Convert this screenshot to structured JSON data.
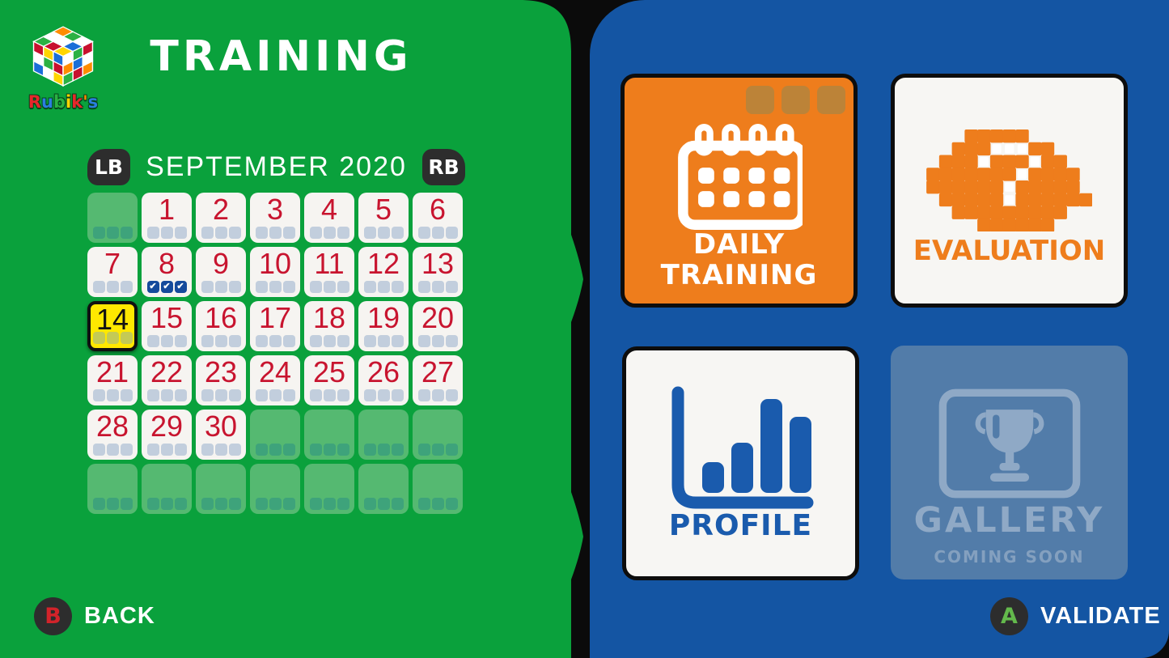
{
  "brand": {
    "name": "Rubik's"
  },
  "screen": {
    "title": "TRAINING"
  },
  "calendar": {
    "month_label": "SEPTEMBER 2020",
    "prev_bumper": "LB",
    "next_bumper": "RB",
    "day_count": 30,
    "leading_empty_cells": 1,
    "trailing_empty_cells": 11,
    "selected_day": 14,
    "completed_day": 8,
    "completed_checks": 3,
    "slots_per_day": 3,
    "check_glyph": "✔"
  },
  "tiles": {
    "daily_training": {
      "label_line1": "DAILY",
      "label_line2": "TRAINING",
      "icon": "calendar-icon",
      "selected": true,
      "slot_count": 3
    },
    "evaluation": {
      "label": "EVALUATION",
      "icon": "brain-question-icon"
    },
    "profile": {
      "label": "PROFILE",
      "icon": "bar-chart-icon"
    },
    "gallery": {
      "label": "GALLERY",
      "sublabel": "COMING SOON",
      "icon": "trophy-icon",
      "disabled": true
    }
  },
  "footer": {
    "back_button_glyph": "B",
    "back_label": "BACK",
    "validate_button_glyph": "A",
    "validate_label": "VALIDATE"
  },
  "colors": {
    "left_panel_green": "#0AA13C",
    "right_panel_blue": "#1455A3",
    "accent_orange": "#EE7D1C",
    "day_number_red": "#C8142F",
    "selected_day_yellow": "#FFE800",
    "check_navy": "#154A9C",
    "profile_blue": "#1A5BAD",
    "disabled_tile_blue": "#527CA9"
  }
}
